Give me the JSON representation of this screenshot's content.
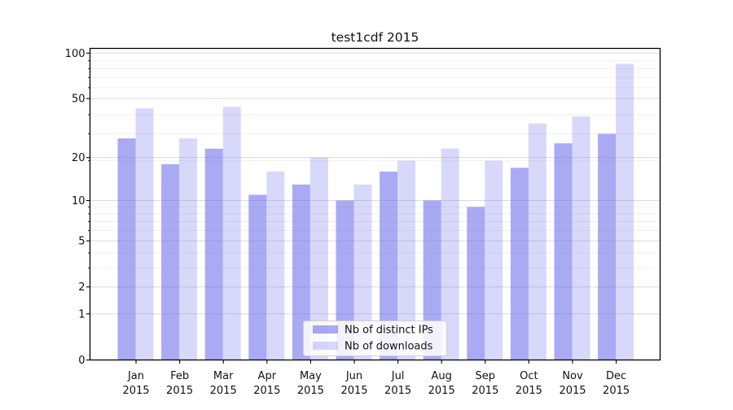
{
  "title": "test1cdf 2015",
  "chart_data": {
    "type": "bar",
    "title": "test1cdf 2015",
    "yscale": "log1p",
    "grid": true,
    "legend_position": "lower center",
    "year_label": "2015",
    "categories": [
      "Jan",
      "Feb",
      "Mar",
      "Apr",
      "May",
      "Jun",
      "Jul",
      "Aug",
      "Sep",
      "Oct",
      "Nov",
      "Dec"
    ],
    "series": [
      {
        "name": "Nb of distinct IPs",
        "color": "rgba(100,100,235,0.55)",
        "values": [
          27,
          18,
          23,
          11,
          13,
          10,
          16,
          10,
          9,
          17,
          25,
          29
        ]
      },
      {
        "name": "Nb of downloads",
        "color": "rgba(100,100,235,0.25)",
        "values": [
          43,
          27,
          44,
          16,
          20,
          13,
          19,
          23,
          19,
          34,
          38,
          85
        ]
      }
    ],
    "y_ticks": [
      0,
      1,
      2,
      5,
      10,
      20,
      50,
      100
    ],
    "ylim": [
      0,
      108
    ]
  },
  "style": {
    "background": "#ffffff",
    "text_color": "#111111",
    "axis_color": "#000000",
    "grid_major_color": "#dadada",
    "grid_minor_color": "#efefef",
    "legend_bg": "rgba(255,255,255,0.85)",
    "legend_border_color": "#d0d0d0"
  }
}
